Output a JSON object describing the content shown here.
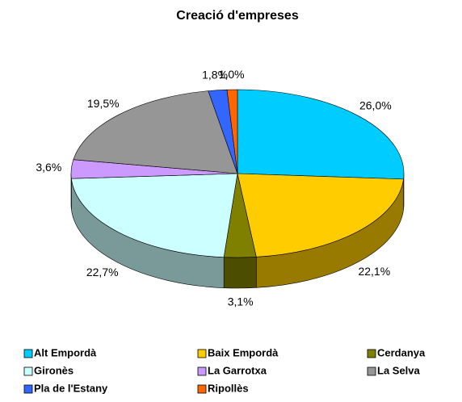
{
  "chart_data": {
    "type": "pie",
    "title": "Creació d'empreses",
    "categories": [
      "Alt Empordà",
      "Baix Empordà",
      "Cerdanya",
      "Gironès",
      "La Garrotxa",
      "La Selva",
      "Pla de l'Estany",
      "Ripollès"
    ],
    "values": [
      26.0,
      22.1,
      3.1,
      22.7,
      3.6,
      19.5,
      1.8,
      1.0
    ],
    "value_labels": [
      "26,0%",
      "22,1%",
      "3,1%",
      "22,7%",
      "3,6%",
      "19,5%",
      "1,8%",
      "1,0%"
    ],
    "colors": [
      "#00ccff",
      "#ffcc00",
      "#808000",
      "#ccffff",
      "#cc99ff",
      "#969696",
      "#3366ff",
      "#ff6600"
    ],
    "legend": "bottom"
  }
}
